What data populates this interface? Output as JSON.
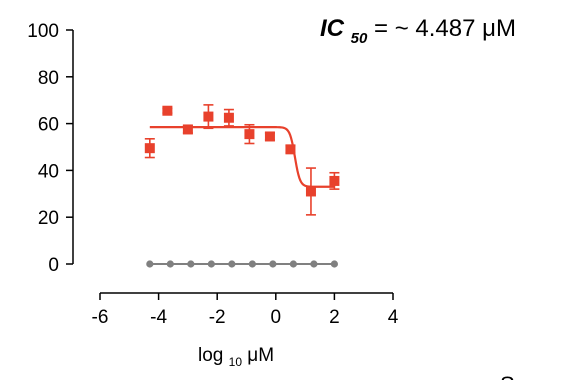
{
  "chart_data": {
    "type": "scatter",
    "title": "",
    "xlabel": {
      "base": "log",
      "subscript": "10",
      "unit": " μM"
    },
    "ylabel": "",
    "xlim": [
      -6,
      4
    ],
    "ylim": [
      0,
      100
    ],
    "x_ticks": [
      -6,
      -4,
      -2,
      0,
      2,
      4
    ],
    "y_ticks": [
      0,
      20,
      40,
      60,
      80,
      100
    ],
    "grid": false,
    "annotation": {
      "ic": "IC",
      "subscript": "50",
      "text": "= ~ 4.487 μM"
    },
    "series": [
      {
        "color": "#e8412c",
        "marker": "square",
        "points": [
          {
            "x": -4.3,
            "y": 49.5,
            "err": 4.0
          },
          {
            "x": -3.7,
            "y": 65.5,
            "err": 1.0
          },
          {
            "x": -3.0,
            "y": 57.5,
            "err": 1.5
          },
          {
            "x": -2.3,
            "y": 63.0,
            "err": 5.0
          },
          {
            "x": -1.6,
            "y": 62.5,
            "err": 3.5
          },
          {
            "x": -0.9,
            "y": 55.5,
            "err": 4.0
          },
          {
            "x": -0.2,
            "y": 54.5,
            "err": 1.5
          },
          {
            "x": 0.5,
            "y": 49.0,
            "err": 1.5
          },
          {
            "x": 1.2,
            "y": 31.0,
            "err": 10.0
          },
          {
            "x": 2.0,
            "y": 35.5,
            "err": 3.5
          }
        ],
        "fit": {
          "top": 58.5,
          "bottom": 33.0,
          "log_ic50": 0.652,
          "hill": 5.0,
          "x_range": [
            -4.3,
            2.0
          ]
        }
      },
      {
        "color": "#808080",
        "marker": "circle",
        "line": true,
        "points": [
          {
            "x": -4.3,
            "y": 0
          },
          {
            "x": -3.6,
            "y": 0
          },
          {
            "x": -2.9,
            "y": 0
          },
          {
            "x": -2.2,
            "y": 0
          },
          {
            "x": -1.5,
            "y": 0
          },
          {
            "x": -0.8,
            "y": 0
          },
          {
            "x": -0.1,
            "y": 0
          },
          {
            "x": 0.6,
            "y": 0
          },
          {
            "x": 1.3,
            "y": 0
          },
          {
            "x": 2.0,
            "y": 0
          }
        ]
      }
    ]
  },
  "cutoff_text": "Sup"
}
